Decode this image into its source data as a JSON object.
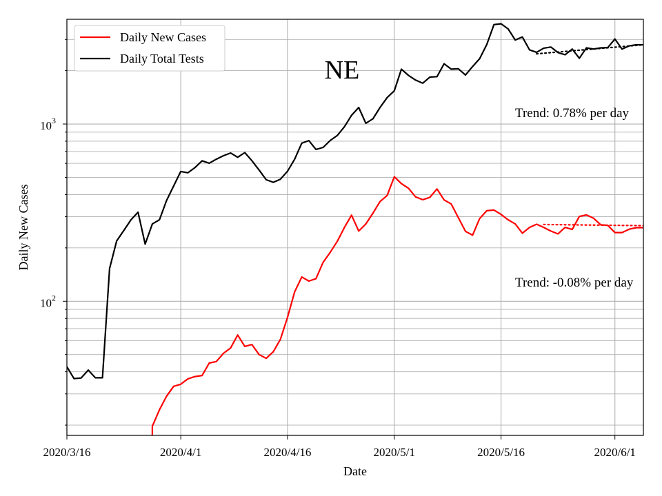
{
  "chart_data": {
    "type": "line",
    "title": "NE",
    "xlabel": "Date",
    "ylabel": "Daily New Cases",
    "yscale": "log",
    "ylim": [
      17.5,
      3900
    ],
    "xlim": [
      "2020-03-16",
      "2020-06-05"
    ],
    "grid": true,
    "legend_position": "top-left",
    "x_ticks": [
      {
        "date": "2020-03-16",
        "label": "2020/3/16"
      },
      {
        "date": "2020-04-01",
        "label": "2020/4/1"
      },
      {
        "date": "2020-04-16",
        "label": "2020/4/16"
      },
      {
        "date": "2020-05-01",
        "label": "2020/5/1"
      },
      {
        "date": "2020-05-16",
        "label": "2020/5/16"
      },
      {
        "date": "2020-06-01",
        "label": "2020/6/1"
      }
    ],
    "y_ticks": [
      {
        "value": 100,
        "base": "10",
        "exp": "2"
      },
      {
        "value": 1000,
        "base": "10",
        "exp": "3"
      }
    ],
    "series": [
      {
        "name": "Daily New Cases",
        "color": "#ff0000",
        "points": [
          [
            "2020-03-27",
            17
          ],
          [
            "2020-03-28",
            17.5
          ],
          [
            "2020-03-28",
            19.7
          ],
          [
            "2020-03-29",
            24.4
          ],
          [
            "2020-03-30",
            29.1
          ],
          [
            "2020-03-31",
            33.1
          ],
          [
            "2020-04-01",
            34
          ],
          [
            "2020-04-02",
            36.5
          ],
          [
            "2020-04-03",
            37.6
          ],
          [
            "2020-04-04",
            38.1
          ],
          [
            "2020-04-05",
            44.8
          ],
          [
            "2020-04-06",
            45.7
          ],
          [
            "2020-04-07",
            50.8
          ],
          [
            "2020-04-08",
            54.5
          ],
          [
            "2020-04-09",
            64.5
          ],
          [
            "2020-04-10",
            55.6
          ],
          [
            "2020-04-11",
            57
          ],
          [
            "2020-04-12",
            50
          ],
          [
            "2020-04-13",
            47.6
          ],
          [
            "2020-04-14",
            51.9
          ],
          [
            "2020-04-15",
            60.9
          ],
          [
            "2020-04-16",
            81.3
          ],
          [
            "2020-04-17",
            113
          ],
          [
            "2020-04-18",
            137
          ],
          [
            "2020-04-19",
            130
          ],
          [
            "2020-04-20",
            134
          ],
          [
            "2020-04-21",
            166
          ],
          [
            "2020-04-22",
            189
          ],
          [
            "2020-04-23",
            218
          ],
          [
            "2020-04-24",
            261
          ],
          [
            "2020-04-25",
            306
          ],
          [
            "2020-04-26",
            249
          ],
          [
            "2020-04-27",
            273
          ],
          [
            "2020-04-28",
            314
          ],
          [
            "2020-04-29",
            365
          ],
          [
            "2020-04-30",
            395
          ],
          [
            "2020-05-01",
            504
          ],
          [
            "2020-05-02",
            461
          ],
          [
            "2020-05-03",
            434
          ],
          [
            "2020-05-04",
            388
          ],
          [
            "2020-05-05",
            374
          ],
          [
            "2020-05-06",
            386
          ],
          [
            "2020-05-07",
            430
          ],
          [
            "2020-05-08",
            373
          ],
          [
            "2020-05-09",
            354
          ],
          [
            "2020-05-10",
            296
          ],
          [
            "2020-05-11",
            248
          ],
          [
            "2020-05-12",
            236
          ],
          [
            "2020-05-13",
            293
          ],
          [
            "2020-05-14",
            324
          ],
          [
            "2020-05-15",
            327
          ],
          [
            "2020-05-16",
            309
          ],
          [
            "2020-05-17",
            288
          ],
          [
            "2020-05-18",
            273
          ],
          [
            "2020-05-19",
            242
          ],
          [
            "2020-05-20",
            261
          ],
          [
            "2020-05-21",
            272
          ],
          [
            "2020-05-22",
            261
          ],
          [
            "2020-05-23",
            249
          ],
          [
            "2020-05-24",
            240
          ],
          [
            "2020-05-25",
            261
          ],
          [
            "2020-05-26",
            254
          ],
          [
            "2020-05-27",
            301
          ],
          [
            "2020-05-28",
            307
          ],
          [
            "2020-05-29",
            294
          ],
          [
            "2020-05-30",
            270
          ],
          [
            "2020-05-31",
            268
          ],
          [
            "2020-06-01",
            244
          ],
          [
            "2020-06-02",
            244
          ],
          [
            "2020-06-03",
            255
          ],
          [
            "2020-06-04",
            260
          ],
          [
            "2020-06-05",
            260
          ]
        ]
      },
      {
        "name": "Daily Total Tests",
        "color": "#000000",
        "points": [
          [
            "2020-03-16",
            42.7
          ],
          [
            "2020-03-17",
            36.6
          ],
          [
            "2020-03-18",
            36.9
          ],
          [
            "2020-03-19",
            40.9
          ],
          [
            "2020-03-20",
            37
          ],
          [
            "2020-03-21",
            37
          ],
          [
            "2020-03-22",
            153
          ],
          [
            "2020-03-23",
            219
          ],
          [
            "2020-03-24",
            251
          ],
          [
            "2020-03-25",
            288
          ],
          [
            "2020-03-26",
            318
          ],
          [
            "2020-03-27",
            210
          ],
          [
            "2020-03-28",
            273
          ],
          [
            "2020-03-29",
            288
          ],
          [
            "2020-03-30",
            370
          ],
          [
            "2020-03-31",
            447
          ],
          [
            "2020-04-01",
            540
          ],
          [
            "2020-04-02",
            531
          ],
          [
            "2020-04-03",
            568
          ],
          [
            "2020-04-04",
            620
          ],
          [
            "2020-04-05",
            601
          ],
          [
            "2020-04-06",
            633
          ],
          [
            "2020-04-07",
            663
          ],
          [
            "2020-04-08",
            686
          ],
          [
            "2020-04-09",
            649
          ],
          [
            "2020-04-10",
            690
          ],
          [
            "2020-04-11",
            621
          ],
          [
            "2020-04-12",
            550
          ],
          [
            "2020-04-13",
            485
          ],
          [
            "2020-04-14",
            469
          ],
          [
            "2020-04-15",
            488
          ],
          [
            "2020-04-16",
            542
          ],
          [
            "2020-04-17",
            633
          ],
          [
            "2020-04-18",
            780
          ],
          [
            "2020-04-19",
            806
          ],
          [
            "2020-04-20",
            719
          ],
          [
            "2020-04-21",
            738
          ],
          [
            "2020-04-22",
            808
          ],
          [
            "2020-04-23",
            862
          ],
          [
            "2020-04-24",
            966
          ],
          [
            "2020-04-25",
            1120
          ],
          [
            "2020-04-26",
            1240
          ],
          [
            "2020-04-27",
            1010
          ],
          [
            "2020-04-28",
            1070
          ],
          [
            "2020-04-29",
            1240
          ],
          [
            "2020-04-30",
            1410
          ],
          [
            "2020-05-01",
            1540
          ],
          [
            "2020-05-02",
            2040
          ],
          [
            "2020-05-03",
            1880
          ],
          [
            "2020-05-04",
            1770
          ],
          [
            "2020-05-05",
            1700
          ],
          [
            "2020-05-06",
            1840
          ],
          [
            "2020-05-07",
            1850
          ],
          [
            "2020-05-08",
            2190
          ],
          [
            "2020-05-09",
            2040
          ],
          [
            "2020-05-10",
            2050
          ],
          [
            "2020-05-11",
            1890
          ],
          [
            "2020-05-12",
            2110
          ],
          [
            "2020-05-13",
            2340
          ],
          [
            "2020-05-14",
            2810
          ],
          [
            "2020-05-15",
            3640
          ],
          [
            "2020-05-16",
            3680
          ],
          [
            "2020-05-17",
            3440
          ],
          [
            "2020-05-18",
            2980
          ],
          [
            "2020-05-19",
            3100
          ],
          [
            "2020-05-20",
            2620
          ],
          [
            "2020-05-21",
            2540
          ],
          [
            "2020-05-22",
            2680
          ],
          [
            "2020-05-23",
            2720
          ],
          [
            "2020-05-24",
            2530
          ],
          [
            "2020-05-25",
            2460
          ],
          [
            "2020-05-26",
            2650
          ],
          [
            "2020-05-27",
            2350
          ],
          [
            "2020-05-28",
            2690
          ],
          [
            "2020-05-29",
            2650
          ],
          [
            "2020-05-30",
            2690
          ],
          [
            "2020-05-31",
            2700
          ],
          [
            "2020-06-01",
            3020
          ],
          [
            "2020-06-02",
            2650
          ],
          [
            "2020-06-03",
            2760
          ],
          [
            "2020-06-04",
            2800
          ],
          [
            "2020-06-05",
            2800
          ]
        ]
      }
    ],
    "trend_lines": [
      {
        "color": "#ff0000",
        "style": "dotted",
        "x_start": "2020-05-22",
        "x_end": "2020-06-05",
        "y_start": 271,
        "y_end": 267
      },
      {
        "color": "#000000",
        "style": "dotted",
        "x_start": "2020-05-21",
        "x_end": "2020-06-05",
        "y_start": 2490,
        "y_end": 2800
      }
    ],
    "annotations": [
      {
        "text": "Trend: 0.78% per day",
        "color": "#000000"
      },
      {
        "text": "Trend: -0.08% per day",
        "color": "#000000"
      }
    ]
  }
}
